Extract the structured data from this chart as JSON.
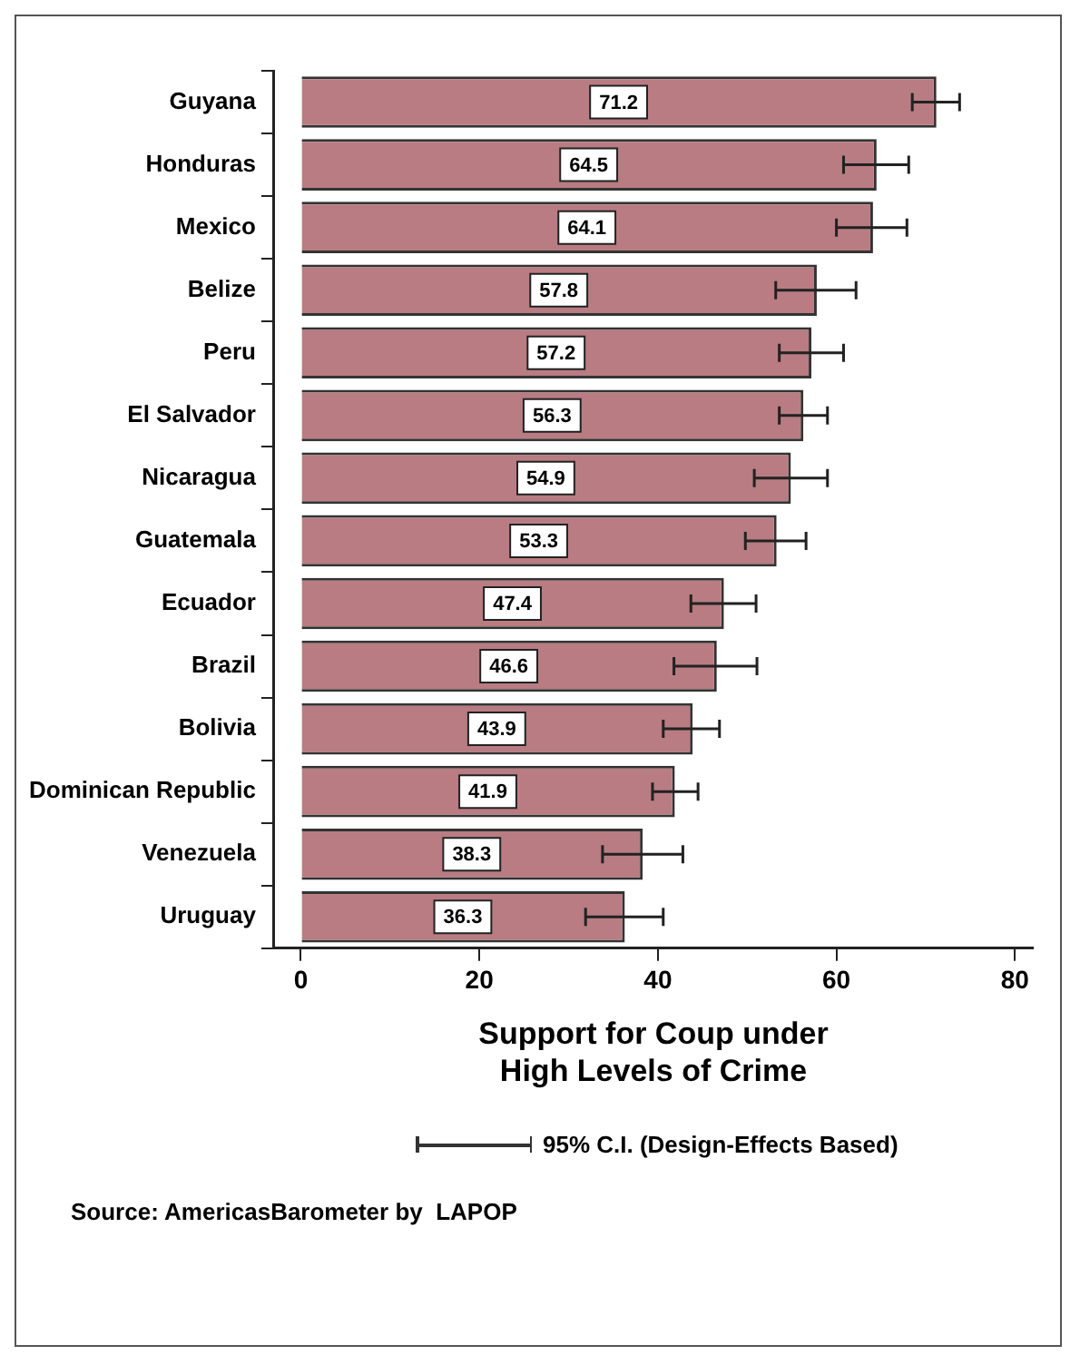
{
  "chart_data": {
    "type": "bar",
    "orientation": "horizontal",
    "categories": [
      "Guyana",
      "Honduras",
      "Mexico",
      "Belize",
      "Peru",
      "El Salvador",
      "Nicaragua",
      "Guatemala",
      "Ecuador",
      "Brazil",
      "Bolivia",
      "Dominican Republic",
      "Venezuela",
      "Uruguay"
    ],
    "values": [
      71.2,
      64.5,
      64.1,
      57.8,
      57.2,
      56.3,
      54.9,
      53.3,
      47.4,
      46.6,
      43.9,
      41.9,
      38.3,
      36.3
    ],
    "errors": [
      [
        68.5,
        73.8
      ],
      [
        60.8,
        68.1
      ],
      [
        60.0,
        67.9
      ],
      [
        53.2,
        62.2
      ],
      [
        53.6,
        60.8
      ],
      [
        53.6,
        59.0
      ],
      [
        50.8,
        59.0
      ],
      [
        49.8,
        56.6
      ],
      [
        43.7,
        51.0
      ],
      [
        41.8,
        51.1
      ],
      [
        40.6,
        46.9
      ],
      [
        39.4,
        44.5
      ],
      [
        33.8,
        42.8
      ],
      [
        31.9,
        40.6
      ]
    ],
    "color": "#b87c82",
    "data_labels": true,
    "xlabel": "Support for Coup under\nHigh Levels of Crime",
    "xlim": [
      -3,
      82
    ],
    "xticks": [
      0,
      20,
      40,
      60,
      80
    ],
    "grid": false,
    "legend": false,
    "annotations": [
      "95% C.I. (Design-Effects Based)",
      "Source: AmericasBarometer by  LAPOP"
    ]
  }
}
